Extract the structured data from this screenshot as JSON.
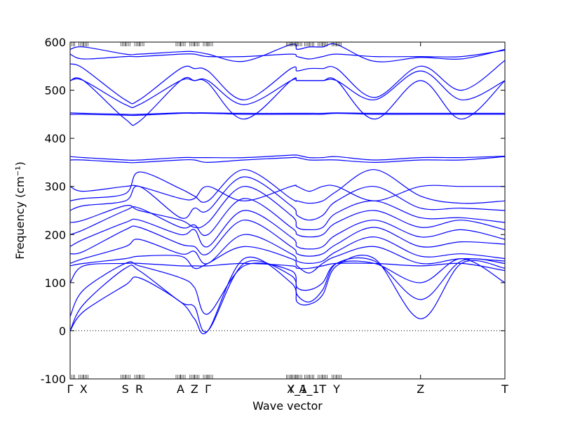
{
  "chart_data": {
    "type": "line",
    "xlabel": "Wave vector",
    "ylabel": "Frequency (cm⁻¹)",
    "ylim": [
      -100,
      600
    ],
    "yticks": [
      -100,
      0,
      100,
      200,
      300,
      400,
      500,
      600
    ],
    "xlim": [
      0,
      100
    ],
    "xticks": [
      {
        "label": "Γ",
        "x": 0
      },
      {
        "label": "X",
        "x": 3.1
      },
      {
        "label": "S",
        "x": 12.7
      },
      {
        "label": "R",
        "x": 15.9
      },
      {
        "label": "A",
        "x": 25.4
      },
      {
        "label": "Z",
        "x": 28.6
      },
      {
        "label": "Γ",
        "x": 31.7
      },
      {
        "label": "Y",
        "x": 50.8
      },
      {
        "label": "X_1",
        "x": 52.2
      },
      {
        "label": "A_1",
        "x": 55.0
      },
      {
        "label": "T",
        "x": 58.1
      },
      {
        "label": "Y",
        "x": 61.3
      },
      {
        "label": "Z",
        "x": 80.6
      },
      {
        "label": "T",
        "x": 100
      }
    ],
    "zero_line": true,
    "line_color": "#0000ff",
    "anchors_x": [
      0,
      3.1,
      12.7,
      15.9,
      25.4,
      28.6,
      31.7,
      40.0,
      50.8,
      52.2,
      55.0,
      58.1,
      61.3,
      70.0,
      80.6,
      90.0,
      100
    ],
    "series": [
      {
        "values": [
          0,
          40,
          95,
          110,
          60,
          25,
          0,
          150,
          100,
          60,
          55,
          75,
          135,
          150,
          25,
          140,
          130
        ]
      },
      {
        "values": [
          0,
          55,
          130,
          125,
          60,
          50,
          0,
          140,
          115,
          75,
          60,
          85,
          140,
          145,
          65,
          145,
          140
        ]
      },
      {
        "values": [
          30,
          85,
          140,
          135,
          110,
          90,
          35,
          135,
          125,
          90,
          85,
          100,
          140,
          140,
          100,
          150,
          100
        ]
      },
      {
        "values": [
          100,
          135,
          140,
          140,
          135,
          135,
          135,
          140,
          135,
          130,
          130,
          135,
          140,
          140,
          135,
          140,
          125
        ]
      },
      {
        "values": [
          135,
          140,
          150,
          155,
          155,
          130,
          140,
          175,
          150,
          135,
          120,
          140,
          155,
          175,
          140,
          150,
          145
        ]
      },
      {
        "values": [
          140,
          150,
          175,
          190,
          160,
          165,
          140,
          200,
          160,
          145,
          140,
          145,
          165,
          195,
          155,
          160,
          150
        ]
      },
      {
        "values": [
          160,
          165,
          210,
          215,
          180,
          175,
          160,
          230,
          175,
          160,
          155,
          160,
          180,
          215,
          175,
          185,
          180
        ]
      },
      {
        "values": [
          175,
          190,
          225,
          230,
          200,
          210,
          175,
          250,
          195,
          175,
          170,
          175,
          200,
          230,
          195,
          210,
          190
        ]
      },
      {
        "values": [
          200,
          210,
          250,
          255,
          215,
          220,
          200,
          275,
          215,
          200,
          195,
          200,
          225,
          250,
          215,
          230,
          210
        ]
      },
      {
        "values": [
          225,
          230,
          260,
          250,
          230,
          215,
          225,
          300,
          240,
          215,
          210,
          215,
          245,
          270,
          235,
          235,
          225
        ]
      },
      {
        "values": [
          250,
          260,
          270,
          300,
          235,
          255,
          250,
          320,
          260,
          240,
          230,
          240,
          270,
          300,
          255,
          255,
          250
        ]
      },
      {
        "values": [
          270,
          275,
          285,
          330,
          295,
          280,
          270,
          335,
          275,
          270,
          265,
          270,
          290,
          335,
          280,
          265,
          270
        ]
      },
      {
        "values": [
          300,
          290,
          300,
          300,
          275,
          275,
          300,
          270,
          300,
          300,
          290,
          300,
          300,
          270,
          300,
          300,
          300
        ]
      },
      {
        "values": [
          355,
          355,
          350,
          350,
          355,
          355,
          350,
          355,
          360,
          360,
          355,
          355,
          355,
          350,
          355,
          355,
          362
        ]
      },
      {
        "values": [
          362,
          360,
          355,
          355,
          360,
          360,
          360,
          360,
          365,
          365,
          360,
          360,
          362,
          355,
          360,
          360,
          363
        ]
      },
      {
        "values": [
          450,
          450,
          448,
          448,
          452,
          452,
          452,
          450,
          450,
          450,
          450,
          450,
          452,
          450,
          450,
          450,
          450
        ]
      },
      {
        "values": [
          453,
          452,
          450,
          450,
          453,
          453,
          453,
          452,
          452,
          452,
          452,
          452,
          453,
          452,
          452,
          452,
          452
        ]
      },
      {
        "values": [
          520,
          520,
          440,
          435,
          520,
          520,
          515,
          440,
          520,
          520,
          520,
          520,
          520,
          440,
          520,
          440,
          520
        ]
      },
      {
        "values": [
          520,
          520,
          470,
          470,
          520,
          520,
          520,
          470,
          520,
          520,
          520,
          520,
          520,
          480,
          540,
          480,
          520
        ]
      },
      {
        "values": [
          555,
          545,
          480,
          480,
          545,
          545,
          540,
          480,
          545,
          540,
          545,
          545,
          545,
          485,
          550,
          500,
          562
        ]
      },
      {
        "values": [
          575,
          565,
          570,
          570,
          575,
          575,
          570,
          570,
          575,
          570,
          565,
          570,
          575,
          570,
          570,
          570,
          583
        ]
      },
      {
        "values": [
          585,
          590,
          575,
          575,
          580,
          580,
          575,
          560,
          595,
          585,
          590,
          590,
          595,
          560,
          568,
          565,
          585
        ]
      }
    ]
  }
}
